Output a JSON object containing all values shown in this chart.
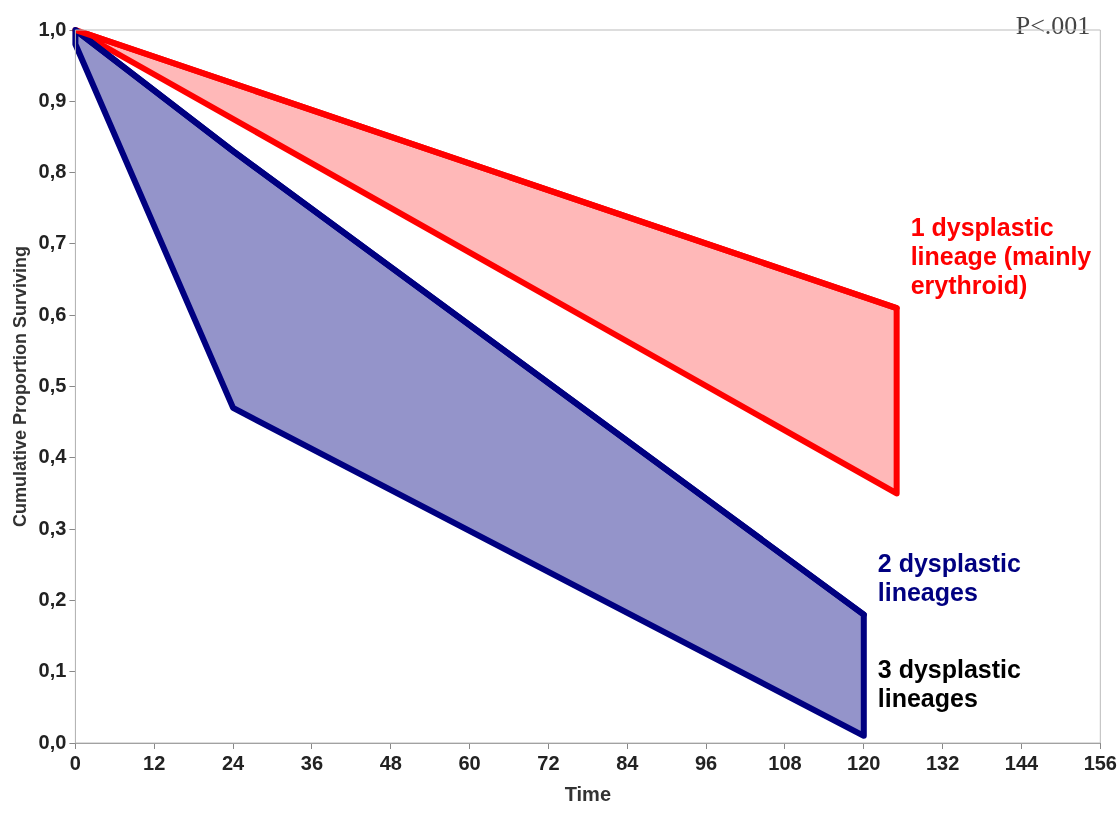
{
  "chart_data": {
    "type": "line",
    "xlabel": "Time",
    "ylabel": "Cumulative Proportion Surviving",
    "xlim": [
      0,
      156
    ],
    "xticks": [
      0,
      12,
      24,
      36,
      48,
      60,
      72,
      84,
      96,
      108,
      120,
      132,
      144,
      156
    ],
    "ylim": [
      0,
      1
    ],
    "yticks": [
      {
        "value": 0,
        "label": "0,0"
      },
      {
        "value": 0.1,
        "label": "0,1"
      },
      {
        "value": 0.2,
        "label": "0,2"
      },
      {
        "value": 0.3,
        "label": "0,3"
      },
      {
        "value": 0.4,
        "label": "0,4"
      },
      {
        "value": 0.5,
        "label": "0,5"
      },
      {
        "value": 0.6,
        "label": "0,6"
      },
      {
        "value": 0.7,
        "label": "0,7"
      },
      {
        "value": 0.8,
        "label": "0,8"
      },
      {
        "value": 0.9,
        "label": "0,9"
      },
      {
        "value": 1,
        "label": "1,0"
      }
    ],
    "grid": false,
    "legend": false,
    "series": [
      {
        "name": "1 dysplastic lineage (mainly erythroid)",
        "color": "#ff0000",
        "x": [
          0,
          125
        ],
        "values": [
          1.0,
          0.61
        ],
        "upper": [
          1.0,
          0.61
        ],
        "lower": [
          1.0,
          0.35
        ]
      },
      {
        "name": "2 dysplastic lineages",
        "color": "#000080",
        "x": [
          0,
          24,
          120
        ],
        "values": [
          1.0,
          0.83,
          0.18
        ],
        "upper": [
          1.0,
          0.83,
          0.18
        ],
        "lower": [
          0.98,
          0.47,
          0.01
        ]
      }
    ],
    "annotations": [
      "P<.001",
      {
        "text": "3 dysplastic lineages",
        "x": 120,
        "y": 0.08
      }
    ]
  }
}
